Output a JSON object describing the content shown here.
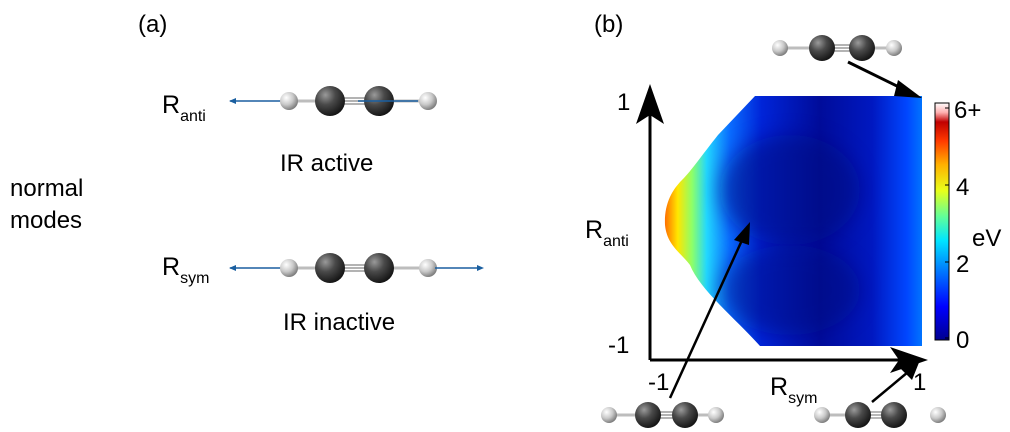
{
  "panel_a": {
    "label": "(a)",
    "side_label_line1": "normal",
    "side_label_line2": "modes",
    "anti": {
      "symbol": "R",
      "subscript": "anti",
      "caption": "IR active"
    },
    "sym": {
      "symbol": "R",
      "subscript": "sym",
      "caption": "IR inactive"
    }
  },
  "panel_b": {
    "label": "(b)",
    "y_axis": {
      "symbol": "R",
      "subscript": "anti",
      "tick_max": "1",
      "tick_min": "-1"
    },
    "x_axis": {
      "symbol": "R",
      "subscript": "sym",
      "tick_min": "-1",
      "tick_max": "1"
    },
    "colorbar": {
      "unit": "eV",
      "ticks": [
        "6+",
        "4",
        "2",
        "0"
      ],
      "range": [
        0,
        6
      ]
    }
  },
  "colors": {
    "arrow_blue": "#1a5fa0",
    "hydrogen": "#cfcfcf",
    "carbon": "#3a3a3a"
  }
}
